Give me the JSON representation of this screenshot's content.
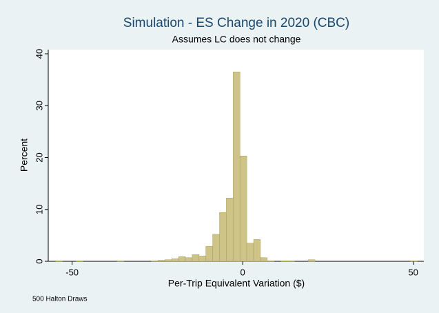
{
  "chart_data": {
    "type": "histogram",
    "title": "Simulation - ES Change in 2020 (CBC)",
    "subtitle": "Assumes LC does not change",
    "x_label": "Per-Trip Equivalent Variation ($)",
    "y_label": "Percent",
    "note": "500 Halton Draws",
    "bins": [
      -54.8,
      -52.8,
      -50.8,
      -48.8,
      -46.8,
      -44.8,
      -42.8,
      -40.8,
      -38.8,
      -36.8,
      -34.8,
      -32.8,
      -30.8,
      -28.8,
      -26.8,
      -24.8,
      -22.8,
      -20.8,
      -18.8,
      -16.8,
      -14.8,
      -12.8,
      -10.8,
      -8.8,
      -6.8,
      -4.8,
      -2.8,
      -0.8,
      1.2,
      3.2,
      5.2,
      7.2,
      9.2,
      11.2,
      13.2,
      15.2,
      17.2,
      19.2,
      21.2,
      23.2,
      25.2,
      27.2,
      29.2,
      31.2,
      33.2,
      35.2,
      37.2,
      39.2,
      41.2,
      43.2,
      45.2,
      47.2,
      49.2,
      51.2
    ],
    "values": [
      0.1,
      0,
      0,
      0.1,
      0,
      0,
      0,
      0,
      0,
      0.1,
      0,
      0,
      0,
      0,
      0.1,
      0.2,
      0.3,
      0.5,
      0.9,
      0.7,
      1.3,
      1.0,
      2.9,
      5.2,
      9.4,
      12.2,
      36.5,
      20.3,
      3.5,
      4.2,
      0.7,
      0.1,
      0,
      0.1,
      0.1,
      0,
      0,
      0.3,
      0,
      0,
      0,
      0,
      0,
      0,
      0,
      0,
      0,
      0,
      0,
      0,
      0,
      0,
      0.1
    ],
    "color": "#cfc488",
    "edge_color": "#a89c5a",
    "xlim": [
      -57,
      53.1
    ],
    "xticks": [
      -50,
      0,
      50
    ],
    "ylim": [
      0,
      40.8
    ],
    "yticks": [
      0,
      10,
      20,
      30,
      40
    ],
    "grid": false
  }
}
